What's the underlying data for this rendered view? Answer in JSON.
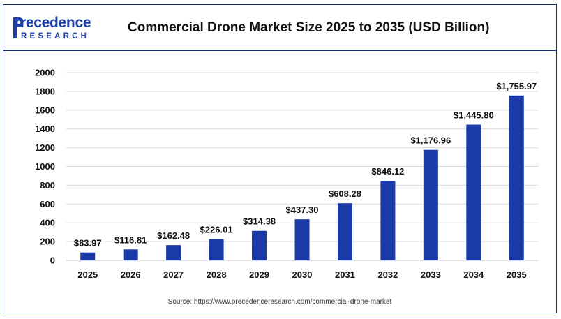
{
  "header": {
    "logo_main": "recedence",
    "logo_sub": "RESEARCH",
    "title": "Commercial Drone Market Size 2025 to 2035 (USD Billion)"
  },
  "source": "Source: https://www.precedenceresearch.com/commercial-drone-market",
  "colors": {
    "bar": "#1a3aa8",
    "brand": "#1d3fa6",
    "grid": "#d9d9d9",
    "border": "#1a2b6e"
  },
  "chart_data": {
    "type": "bar",
    "categories": [
      "2025",
      "2026",
      "2027",
      "2028",
      "2029",
      "2030",
      "2031",
      "2032",
      "2033",
      "2034",
      "2035"
    ],
    "values": [
      83.97,
      116.81,
      162.48,
      226.01,
      314.38,
      437.3,
      608.28,
      846.12,
      1176.96,
      1445.8,
      1755.97
    ],
    "value_labels": [
      "$83.97",
      "$116.81",
      "$162.48",
      "$226.01",
      "$314.38",
      "$437.30",
      "$608.28",
      "$846.12",
      "$1,176.96",
      "$1,445.80",
      "$1,755.97"
    ],
    "ylim": [
      0,
      2000
    ],
    "yticks": [
      0,
      200,
      400,
      600,
      800,
      1000,
      1200,
      1400,
      1600,
      1800,
      2000
    ],
    "grid": true,
    "title": "Commercial Drone Market Size 2025 to 2035 (USD Billion)",
    "xlabel": "",
    "ylabel": ""
  }
}
